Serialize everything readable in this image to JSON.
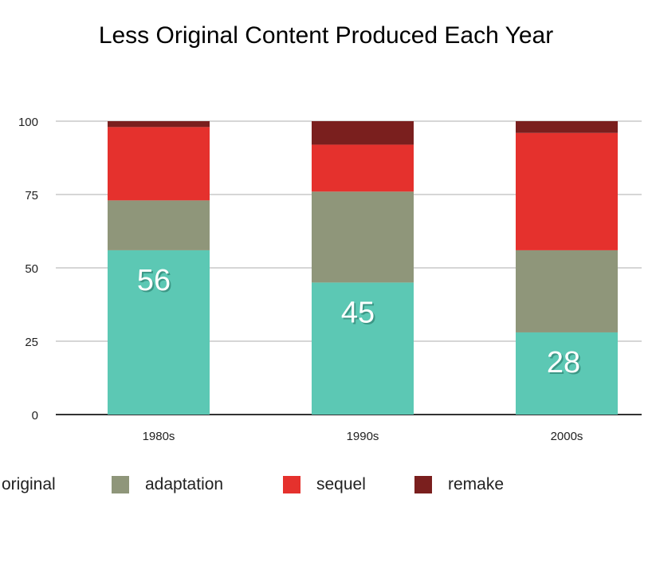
{
  "chart_data": {
    "type": "bar",
    "stacked": true,
    "title": "Less Original Content Produced Each Year",
    "xlabel": "",
    "ylabel": "",
    "ylim": [
      0,
      100
    ],
    "yticks": [
      "0",
      "25",
      "50",
      "75",
      "100"
    ],
    "grid": true,
    "legend_position": "bottom",
    "categories": [
      "1980s",
      "1990s",
      "2000s"
    ],
    "series": [
      {
        "name": "original",
        "color": "#5cc8b4",
        "values": [
          56,
          45,
          28
        ]
      },
      {
        "name": "adaptation",
        "color": "#8f967a",
        "values": [
          17,
          31,
          28
        ]
      },
      {
        "name": "sequel",
        "color": "#e5312d",
        "values": [
          25,
          16,
          40
        ]
      },
      {
        "name": "remake",
        "color": "#7a1f1e",
        "values": [
          2,
          8,
          4
        ]
      }
    ],
    "data_labels": [
      "56",
      "45",
      "28"
    ]
  }
}
